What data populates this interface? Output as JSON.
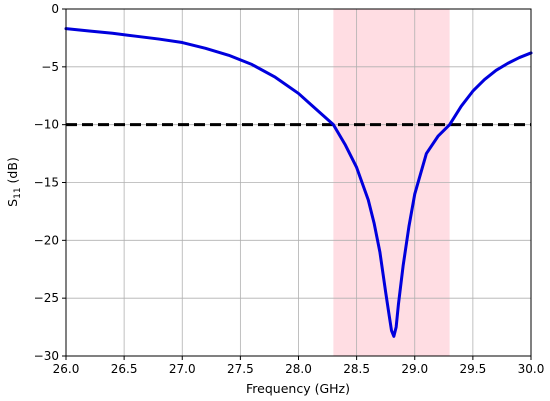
{
  "chart_data": {
    "type": "line",
    "title": "",
    "xlabel": "Frequency (GHz)",
    "ylabel_base": "S",
    "ylabel_sub": "11",
    "ylabel_unit": " (dB)",
    "xlim": [
      26.0,
      30.0
    ],
    "ylim": [
      -30,
      0
    ],
    "xticks": [
      26.0,
      26.5,
      27.0,
      27.5,
      28.0,
      28.5,
      29.0,
      29.5,
      30.0
    ],
    "xtick_labels": [
      "26.0",
      "26.5",
      "27.0",
      "27.5",
      "28.0",
      "28.5",
      "29.0",
      "29.5",
      "30.0"
    ],
    "yticks": [
      0,
      -5,
      -10,
      -15,
      -20,
      -25,
      -30
    ],
    "ytick_labels": [
      "0",
      "−5",
      "−10",
      "−15",
      "−20",
      "−25",
      "−30"
    ],
    "grid": true,
    "shaded_band": {
      "x_start": 28.3,
      "x_end": 29.3,
      "color": "#ffdde3"
    },
    "threshold": {
      "y": -10,
      "color": "#000000",
      "style": "dashed"
    },
    "series": [
      {
        "color": "#0000dd",
        "x": [
          26.0,
          26.2,
          26.4,
          26.6,
          26.8,
          27.0,
          27.2,
          27.4,
          27.6,
          27.8,
          28.0,
          28.1,
          28.2,
          28.3,
          28.4,
          28.5,
          28.6,
          28.65,
          28.7,
          28.75,
          28.78,
          28.8,
          28.82,
          28.84,
          28.86,
          28.9,
          28.95,
          29.0,
          29.1,
          29.2,
          29.3,
          29.4,
          29.5,
          29.6,
          29.7,
          29.8,
          29.9,
          30.0
        ],
        "y": [
          -1.7,
          -1.9,
          -2.1,
          -2.35,
          -2.6,
          -2.9,
          -3.4,
          -4.0,
          -4.8,
          -5.9,
          -7.3,
          -8.2,
          -9.1,
          -10.0,
          -11.7,
          -13.7,
          -16.5,
          -18.5,
          -21.0,
          -24.5,
          -26.5,
          -27.8,
          -28.3,
          -27.5,
          -25.5,
          -22.2,
          -18.8,
          -16.0,
          -12.5,
          -11.0,
          -10.0,
          -8.4,
          -7.1,
          -6.1,
          -5.3,
          -4.7,
          -4.2,
          -3.8
        ]
      }
    ]
  }
}
